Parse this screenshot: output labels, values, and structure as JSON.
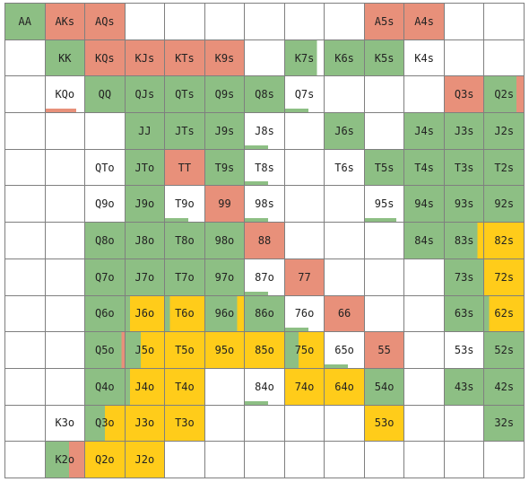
{
  "colors": {
    "green": "#8dbf84",
    "red": "#e8907a",
    "yellow": "#ffcc1a",
    "white": "#ffffff"
  },
  "rows": [
    [
      {
        "label": "AA",
        "fill": [
          [
            "green",
            1
          ]
        ]
      },
      {
        "label": "AKs",
        "fill": [
          [
            "red",
            1
          ]
        ]
      },
      {
        "label": "AQs",
        "fill": [
          [
            "red",
            1
          ]
        ]
      },
      {
        "label": "",
        "fill": []
      },
      {
        "label": "",
        "fill": []
      },
      {
        "label": "",
        "fill": []
      },
      {
        "label": "",
        "fill": []
      },
      {
        "label": "",
        "fill": []
      },
      {
        "label": "",
        "fill": []
      },
      {
        "label": "A5s",
        "fill": [
          [
            "red",
            1
          ]
        ]
      },
      {
        "label": "A4s",
        "fill": [
          [
            "red",
            1
          ]
        ]
      },
      {
        "label": "",
        "fill": []
      },
      {
        "label": "",
        "fill": []
      }
    ],
    [
      {
        "label": "",
        "fill": []
      },
      {
        "label": "KK",
        "fill": [
          [
            "green",
            1
          ]
        ]
      },
      {
        "label": "KQs",
        "fill": [
          [
            "red",
            1
          ]
        ]
      },
      {
        "label": "KJs",
        "fill": [
          [
            "red",
            1
          ]
        ]
      },
      {
        "label": "KTs",
        "fill": [
          [
            "red",
            1
          ]
        ]
      },
      {
        "label": "K9s",
        "fill": [
          [
            "red",
            1
          ]
        ]
      },
      {
        "label": "",
        "fill": []
      },
      {
        "label": "K7s",
        "fill": [
          [
            "green",
            0.82
          ]
        ]
      },
      {
        "label": "K6s",
        "fill": [
          [
            "green",
            1
          ]
        ]
      },
      {
        "label": "K5s",
        "fill": [
          [
            "green",
            1
          ]
        ]
      },
      {
        "label": "K4s",
        "fill": []
      },
      {
        "label": "",
        "fill": []
      },
      {
        "label": "",
        "fill": []
      }
    ],
    [
      {
        "label": "",
        "fill": []
      },
      {
        "label": "KQo",
        "fill": [
          [
            "red",
            0.22
          ]
        ]
      },
      {
        "label": "QQ",
        "fill": [
          [
            "green",
            1
          ]
        ]
      },
      {
        "label": "QJs",
        "fill": [
          [
            "green",
            1
          ]
        ]
      },
      {
        "label": "QTs",
        "fill": [
          [
            "green",
            1
          ]
        ]
      },
      {
        "label": "Q9s",
        "fill": [
          [
            "green",
            1
          ]
        ]
      },
      {
        "label": "Q8s",
        "fill": [
          [
            "green",
            1
          ]
        ]
      },
      {
        "label": "Q7s",
        "fill": [
          [
            "green",
            0.12
          ]
        ]
      },
      {
        "label": "",
        "fill": []
      },
      {
        "label": "",
        "fill": []
      },
      {
        "label": "",
        "fill": []
      },
      {
        "label": "Q3s",
        "fill": [
          [
            "red",
            1
          ]
        ]
      },
      {
        "label": "Q2s",
        "fill": [
          [
            "green",
            0.82
          ],
          [
            "red",
            0.18
          ]
        ]
      }
    ],
    [
      {
        "label": "",
        "fill": []
      },
      {
        "label": "",
        "fill": []
      },
      {
        "label": "",
        "fill": []
      },
      {
        "label": "JJ",
        "fill": [
          [
            "green",
            1
          ]
        ]
      },
      {
        "label": "JTs",
        "fill": [
          [
            "green",
            1
          ]
        ]
      },
      {
        "label": "J9s",
        "fill": [
          [
            "green",
            1
          ]
        ]
      },
      {
        "label": "J8s",
        "fill": [
          [
            "green",
            0.12
          ]
        ]
      },
      {
        "label": "",
        "fill": []
      },
      {
        "label": "J6s",
        "fill": [
          [
            "green",
            1
          ]
        ]
      },
      {
        "label": "",
        "fill": []
      },
      {
        "label": "J4s",
        "fill": [
          [
            "green",
            1
          ]
        ]
      },
      {
        "label": "J3s",
        "fill": [
          [
            "green",
            1
          ]
        ]
      },
      {
        "label": "J2s",
        "fill": [
          [
            "green",
            1
          ]
        ]
      }
    ],
    [
      {
        "label": "",
        "fill": []
      },
      {
        "label": "",
        "fill": []
      },
      {
        "label": "QTo",
        "fill": []
      },
      {
        "label": "JTo",
        "fill": [
          [
            "green",
            1
          ]
        ]
      },
      {
        "label": "TT",
        "fill": [
          [
            "red",
            1
          ]
        ]
      },
      {
        "label": "T9s",
        "fill": [
          [
            "green",
            1
          ]
        ]
      },
      {
        "label": "T8s",
        "fill": [
          [
            "green",
            0.12
          ]
        ]
      },
      {
        "label": "",
        "fill": []
      },
      {
        "label": "T6s",
        "fill": []
      },
      {
        "label": "T5s",
        "fill": [
          [
            "green",
            1
          ]
        ]
      },
      {
        "label": "T4s",
        "fill": [
          [
            "green",
            1
          ]
        ]
      },
      {
        "label": "T3s",
        "fill": [
          [
            "green",
            1
          ]
        ]
      },
      {
        "label": "T2s",
        "fill": [
          [
            "green",
            1
          ]
        ]
      }
    ],
    [
      {
        "label": "",
        "fill": []
      },
      {
        "label": "",
        "fill": []
      },
      {
        "label": "Q9o",
        "fill": []
      },
      {
        "label": "J9o",
        "fill": [
          [
            "green",
            1
          ]
        ]
      },
      {
        "label": "T9o",
        "fill": [
          [
            "green",
            0.12
          ]
        ]
      },
      {
        "label": "99",
        "fill": [
          [
            "red",
            1
          ]
        ]
      },
      {
        "label": "98s",
        "fill": [
          [
            "green",
            0.12
          ]
        ]
      },
      {
        "label": "",
        "fill": []
      },
      {
        "label": "",
        "fill": []
      },
      {
        "label": "95s",
        "fill": [
          [
            "green",
            0.22
          ]
        ]
      },
      {
        "label": "94s",
        "fill": [
          [
            "green",
            1
          ]
        ]
      },
      {
        "label": "93s",
        "fill": [
          [
            "green",
            1
          ]
        ]
      },
      {
        "label": "92s",
        "fill": [
          [
            "green",
            1
          ]
        ]
      }
    ],
    [
      {
        "label": "",
        "fill": []
      },
      {
        "label": "",
        "fill": []
      },
      {
        "label": "Q8o",
        "fill": [
          [
            "green",
            1
          ]
        ]
      },
      {
        "label": "J8o",
        "fill": [
          [
            "green",
            1
          ]
        ]
      },
      {
        "label": "T8o",
        "fill": [
          [
            "green",
            1
          ]
        ]
      },
      {
        "label": "98o",
        "fill": [
          [
            "green",
            1
          ]
        ]
      },
      {
        "label": "88",
        "fill": [
          [
            "red",
            1
          ]
        ]
      },
      {
        "label": "",
        "fill": []
      },
      {
        "label": "",
        "fill": []
      },
      {
        "label": "",
        "fill": []
      },
      {
        "label": "84s",
        "fill": [
          [
            "green",
            1
          ]
        ]
      },
      {
        "label": "83s",
        "fill": [
          [
            "green",
            0.85
          ],
          [
            "yellow",
            0.15
          ]
        ]
      },
      {
        "label": "82s",
        "fill": [
          [
            "yellow",
            1
          ]
        ]
      }
    ],
    [
      {
        "label": "",
        "fill": []
      },
      {
        "label": "",
        "fill": []
      },
      {
        "label": "Q7o",
        "fill": [
          [
            "green",
            1
          ]
        ]
      },
      {
        "label": "J7o",
        "fill": [
          [
            "green",
            1
          ]
        ]
      },
      {
        "label": "T7o",
        "fill": [
          [
            "green",
            1
          ]
        ]
      },
      {
        "label": "97o",
        "fill": [
          [
            "green",
            1
          ]
        ]
      },
      {
        "label": "87o",
        "fill": [
          [
            "green",
            0.12
          ]
        ]
      },
      {
        "label": "77",
        "fill": [
          [
            "red",
            1
          ]
        ]
      },
      {
        "label": "",
        "fill": []
      },
      {
        "label": "",
        "fill": []
      },
      {
        "label": "",
        "fill": []
      },
      {
        "label": "73s",
        "fill": [
          [
            "green",
            1
          ]
        ]
      },
      {
        "label": "72s",
        "fill": [
          [
            "yellow",
            1
          ]
        ]
      }
    ],
    [
      {
        "label": "",
        "fill": []
      },
      {
        "label": "",
        "fill": []
      },
      {
        "label": "Q6o",
        "fill": [
          [
            "green",
            1
          ]
        ]
      },
      {
        "label": "J6o",
        "fill": [
          [
            "green",
            0.12
          ],
          [
            "yellow",
            0.88
          ]
        ]
      },
      {
        "label": "T6o",
        "fill": [
          [
            "green",
            0.12
          ],
          [
            "yellow",
            0.88
          ]
        ]
      },
      {
        "label": "96o",
        "fill": [
          [
            "green",
            0.82
          ],
          [
            "yellow",
            0.18
          ]
        ]
      },
      {
        "label": "86o",
        "fill": [
          [
            "green",
            1
          ]
        ]
      },
      {
        "label": "76o",
        "fill": [
          [
            "green",
            0.12
          ]
        ]
      },
      {
        "label": "66",
        "fill": [
          [
            "red",
            1
          ]
        ]
      },
      {
        "label": "",
        "fill": []
      },
      {
        "label": "",
        "fill": []
      },
      {
        "label": "63s",
        "fill": [
          [
            "green",
            1
          ]
        ]
      },
      {
        "label": "62s",
        "fill": [
          [
            "green",
            0.12
          ],
          [
            "yellow",
            0.88
          ]
        ]
      }
    ],
    [
      {
        "label": "",
        "fill": []
      },
      {
        "label": "",
        "fill": []
      },
      {
        "label": "Q5o",
        "fill": [
          [
            "green",
            0.92
          ],
          [
            "red",
            0.08
          ]
        ]
      },
      {
        "label": "J5o",
        "fill": [
          [
            "green",
            0.4
          ],
          [
            "yellow",
            0.6
          ]
        ]
      },
      {
        "label": "T5o",
        "fill": [
          [
            "yellow",
            1
          ]
        ]
      },
      {
        "label": "95o",
        "fill": [
          [
            "yellow",
            1
          ]
        ]
      },
      {
        "label": "85o",
        "fill": [
          [
            "yellow",
            1
          ]
        ]
      },
      {
        "label": "75o",
        "fill": [
          [
            "green",
            0.35
          ],
          [
            "yellow",
            0.65
          ]
        ]
      },
      {
        "label": "65o",
        "fill": [
          [
            "green",
            0.12
          ]
        ]
      },
      {
        "label": "55",
        "fill": [
          [
            "red",
            1
          ]
        ]
      },
      {
        "label": "",
        "fill": []
      },
      {
        "label": "53s",
        "fill": []
      },
      {
        "label": "52s",
        "fill": [
          [
            "green",
            1
          ]
        ]
      }
    ],
    [
      {
        "label": "",
        "fill": []
      },
      {
        "label": "",
        "fill": []
      },
      {
        "label": "Q4o",
        "fill": [
          [
            "green",
            1
          ]
        ]
      },
      {
        "label": "J4o",
        "fill": [
          [
            "green",
            0.12
          ],
          [
            "yellow",
            0.88
          ]
        ]
      },
      {
        "label": "T4o",
        "fill": [
          [
            "yellow",
            1
          ]
        ]
      },
      {
        "label": "",
        "fill": []
      },
      {
        "label": "84o",
        "fill": [
          [
            "green",
            0.12
          ]
        ]
      },
      {
        "label": "74o",
        "fill": [
          [
            "yellow",
            1
          ]
        ]
      },
      {
        "label": "64o",
        "fill": [
          [
            "yellow",
            1
          ]
        ]
      },
      {
        "label": "54o",
        "fill": [
          [
            "green",
            1
          ]
        ]
      },
      {
        "label": "",
        "fill": []
      },
      {
        "label": "43s",
        "fill": [
          [
            "green",
            1
          ]
        ]
      },
      {
        "label": "42s",
        "fill": [
          [
            "green",
            1
          ]
        ]
      }
    ],
    [
      {
        "label": "",
        "fill": []
      },
      {
        "label": "K3o",
        "fill": []
      },
      {
        "label": "Q3o",
        "fill": [
          [
            "green",
            0.5
          ],
          [
            "yellow",
            0.5
          ]
        ]
      },
      {
        "label": "J3o",
        "fill": [
          [
            "yellow",
            1
          ]
        ]
      },
      {
        "label": "T3o",
        "fill": [
          [
            "yellow",
            1
          ]
        ]
      },
      {
        "label": "",
        "fill": []
      },
      {
        "label": "",
        "fill": []
      },
      {
        "label": "",
        "fill": []
      },
      {
        "label": "",
        "fill": []
      },
      {
        "label": "53o",
        "fill": [
          [
            "yellow",
            1
          ]
        ]
      },
      {
        "label": "",
        "fill": []
      },
      {
        "label": "",
        "fill": []
      },
      {
        "label": "32s",
        "fill": [
          [
            "green",
            1
          ]
        ]
      }
    ],
    [
      {
        "label": "",
        "fill": []
      },
      {
        "label": "K2o",
        "fill": [
          [
            "green",
            0.6
          ],
          [
            "red",
            0.4
          ]
        ]
      },
      {
        "label": "Q2o",
        "fill": [
          [
            "yellow",
            1
          ]
        ]
      },
      {
        "label": "J2o",
        "fill": [
          [
            "yellow",
            1
          ]
        ]
      },
      {
        "label": "",
        "fill": []
      },
      {
        "label": "",
        "fill": []
      },
      {
        "label": "",
        "fill": []
      },
      {
        "label": "",
        "fill": []
      },
      {
        "label": "",
        "fill": []
      },
      {
        "label": "",
        "fill": []
      },
      {
        "label": "",
        "fill": []
      },
      {
        "label": "",
        "fill": []
      },
      {
        "label": "",
        "fill": []
      }
    ]
  ]
}
